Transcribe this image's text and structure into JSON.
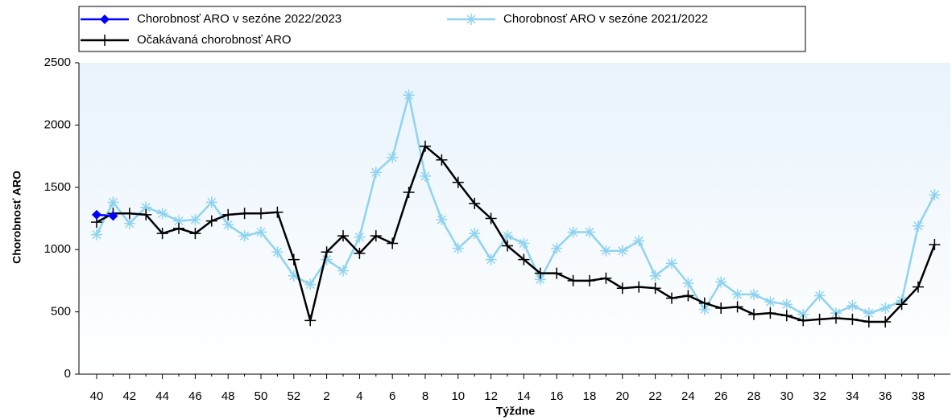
{
  "chart_data": {
    "type": "line",
    "x_label": "Týždne",
    "y_label": "Chorobnosť ARO",
    "categories": [
      "40",
      null,
      "42",
      null,
      "44",
      null,
      "46",
      null,
      "48",
      null,
      "50",
      null,
      "52",
      null,
      "2",
      null,
      "4",
      null,
      "6",
      null,
      "8",
      null,
      "10",
      null,
      "12",
      null,
      "14",
      null,
      "16",
      null,
      "18",
      null,
      "20",
      null,
      "22",
      null,
      "24",
      null,
      "26",
      null,
      "28",
      null,
      "30",
      null,
      "32",
      null,
      "34",
      null,
      "36",
      null,
      "38",
      null
    ],
    "series": [
      {
        "name": "Chorobnosť ARO v sezóne 2022/2023",
        "color": "#0000ff",
        "marker": "diamond",
        "values": [
          1280,
          1270,
          null,
          null,
          null,
          null,
          null,
          null,
          null,
          null,
          null,
          null,
          null,
          null,
          null,
          null,
          null,
          null,
          null,
          null,
          null,
          null,
          null,
          null,
          null,
          null,
          null,
          null,
          null,
          null,
          null,
          null,
          null,
          null,
          null,
          null,
          null,
          null,
          null,
          null,
          null,
          null,
          null,
          null,
          null,
          null,
          null,
          null,
          null,
          null,
          null,
          null
        ]
      },
      {
        "name": "Chorobnosť ARO v sezóne 2021/2022",
        "color": "#8fd3f0",
        "marker": "asterisk",
        "values": [
          1120,
          1380,
          1210,
          1340,
          1290,
          1230,
          1240,
          1380,
          1200,
          1110,
          1140,
          980,
          790,
          720,
          920,
          830,
          1100,
          1620,
          1740,
          2240,
          1590,
          1240,
          1010,
          1130,
          920,
          1110,
          1050,
          760,
          1010,
          1140,
          1140,
          990,
          990,
          1070,
          790,
          890,
          730,
          520,
          740,
          640,
          640,
          580,
          560,
          480,
          630,
          490,
          550,
          490,
          530,
          590,
          1190,
          1440
        ]
      },
      {
        "name": "Očakávaná chorobnosť ARO",
        "color": "#000000",
        "marker": "plus",
        "values": [
          1220,
          1290,
          1290,
          1280,
          1130,
          1170,
          1130,
          1230,
          1280,
          1290,
          1290,
          1300,
          920,
          430,
          980,
          1110,
          970,
          1110,
          1050,
          1460,
          1830,
          1720,
          1540,
          1370,
          1250,
          1030,
          920,
          810,
          810,
          750,
          750,
          770,
          690,
          700,
          690,
          610,
          630,
          570,
          530,
          540,
          480,
          490,
          470,
          430,
          440,
          450,
          440,
          420,
          420,
          560,
          700,
          1040
        ]
      }
    ],
    "ylim": [
      0,
      2500
    ],
    "yticks": [
      0,
      500,
      1000,
      1500,
      2000,
      2500
    ],
    "legend": "top"
  }
}
